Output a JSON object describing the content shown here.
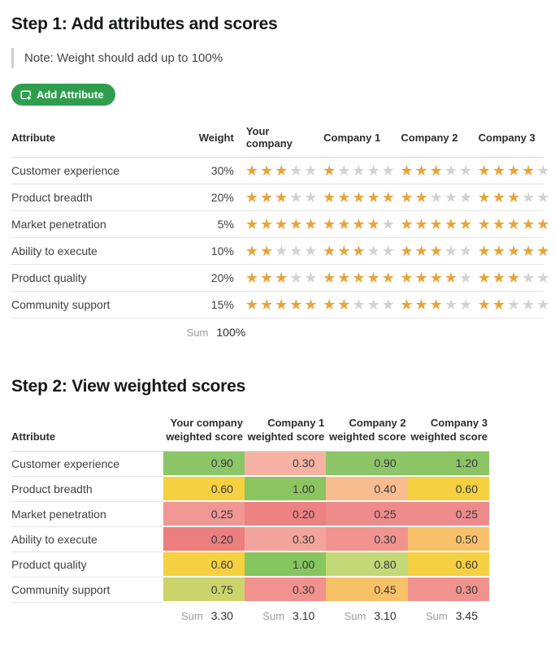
{
  "colors": {
    "accent_green": "#2e9e4e",
    "star_filled": "#e7a43b",
    "star_empty": "#d2d2d2",
    "note_bar": "#d0d0d0"
  },
  "step1": {
    "title": "Step 1: Add attributes and scores",
    "note": "Note: Weight should add up to 100%",
    "add_button_label": "Add Attribute",
    "table": {
      "max_stars": 5,
      "headers": [
        "Attribute",
        "Weight",
        "Your company",
        "Company 1",
        "Company 2",
        "Company 3"
      ],
      "rows": [
        {
          "attribute": "Customer experience",
          "weight": "30%",
          "ratings": [
            3,
            1,
            3,
            4
          ]
        },
        {
          "attribute": "Product breadth",
          "weight": "20%",
          "ratings": [
            3,
            5,
            2,
            3
          ]
        },
        {
          "attribute": "Market penetration",
          "weight": "5%",
          "ratings": [
            5,
            4,
            5,
            5
          ]
        },
        {
          "attribute": "Ability to execute",
          "weight": "10%",
          "ratings": [
            2,
            3,
            3,
            5
          ]
        },
        {
          "attribute": "Product quality",
          "weight": "20%",
          "ratings": [
            3,
            5,
            4,
            3
          ]
        },
        {
          "attribute": "Community support",
          "weight": "15%",
          "ratings": [
            5,
            2,
            3,
            2
          ]
        }
      ],
      "sum_label": "Sum",
      "sum_value": "100%"
    }
  },
  "step2": {
    "title": "Step 2: View weighted scores",
    "table": {
      "attribute_header": "Attribute",
      "company_headers": [
        "Your company\nweighted score",
        "Company 1\nweighted score",
        "Company 2\nweighted score",
        "Company 3\nweighted score"
      ],
      "rows": [
        {
          "attribute": "Customer experience",
          "scores": [
            {
              "value": "0.90",
              "color": "#8dc569"
            },
            {
              "value": "0.30",
              "color": "#f5b2a2"
            },
            {
              "value": "0.90",
              "color": "#8dc569"
            },
            {
              "value": "1.20",
              "color": "#8ac464"
            }
          ]
        },
        {
          "attribute": "Product breadth",
          "scores": [
            {
              "value": "0.60",
              "color": "#f5d041"
            },
            {
              "value": "1.00",
              "color": "#8cc45f"
            },
            {
              "value": "0.40",
              "color": "#f8bd8e"
            },
            {
              "value": "0.60",
              "color": "#f5d041"
            }
          ]
        },
        {
          "attribute": "Market penetration",
          "scores": [
            {
              "value": "0.25",
              "color": "#f09793"
            },
            {
              "value": "0.20",
              "color": "#ed8282"
            },
            {
              "value": "0.25",
              "color": "#ee8b8b"
            },
            {
              "value": "0.25",
              "color": "#ee8b8b"
            }
          ]
        },
        {
          "attribute": "Ability to execute",
          "scores": [
            {
              "value": "0.20",
              "color": "#ec7e7e"
            },
            {
              "value": "0.30",
              "color": "#f3a59d"
            },
            {
              "value": "0.30",
              "color": "#f1938f"
            },
            {
              "value": "0.50",
              "color": "#f8c169"
            }
          ]
        },
        {
          "attribute": "Product quality",
          "scores": [
            {
              "value": "0.60",
              "color": "#f5d041"
            },
            {
              "value": "1.00",
              "color": "#87c55f"
            },
            {
              "value": "0.80",
              "color": "#c3d877"
            },
            {
              "value": "0.60",
              "color": "#f5d041"
            }
          ]
        },
        {
          "attribute": "Community support",
          "scores": [
            {
              "value": "0.75",
              "color": "#ccd46c"
            },
            {
              "value": "0.30",
              "color": "#f1928e"
            },
            {
              "value": "0.45",
              "color": "#f7c167"
            },
            {
              "value": "0.30",
              "color": "#f1928e"
            }
          ]
        }
      ],
      "sum_label": "Sum",
      "sums": [
        "3.30",
        "3.10",
        "3.10",
        "3.45"
      ]
    }
  }
}
